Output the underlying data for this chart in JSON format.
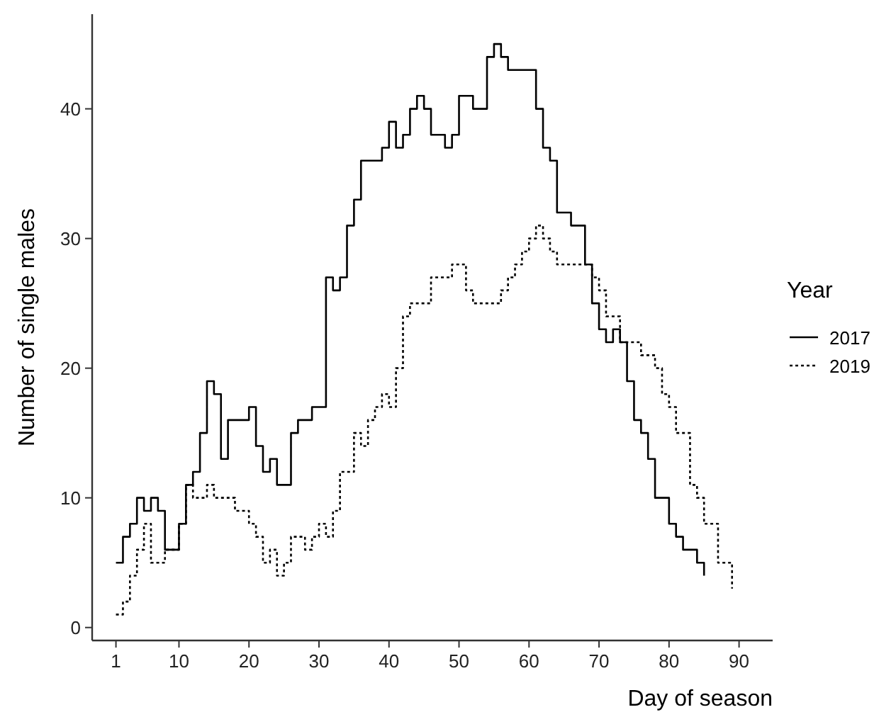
{
  "chart_data": {
    "type": "step",
    "xlabel": "Day of season",
    "ylabel": "Number of single males",
    "legend_title": "Year",
    "legend": "right",
    "grid": false,
    "xlim": [
      -2.4,
      94.8
    ],
    "xticks": [
      1,
      10,
      20,
      30,
      40,
      50,
      60,
      70,
      80,
      90
    ],
    "ylim": [
      -1,
      47.3
    ],
    "yticks": [
      0,
      10,
      20,
      30,
      40
    ],
    "series": [
      {
        "name": "2017",
        "color": "#000000",
        "line_style": "solid",
        "x": [
          1,
          2,
          3,
          4,
          5,
          6,
          7,
          8,
          10,
          11,
          12,
          13,
          14,
          15,
          16,
          17,
          20,
          21,
          22,
          23,
          24,
          26,
          27,
          29,
          31,
          32,
          33,
          34,
          35,
          36,
          39,
          40,
          41,
          42,
          43,
          44,
          45,
          46,
          48,
          49,
          50,
          52,
          54,
          55,
          56,
          57,
          61,
          62,
          63,
          64,
          66,
          68,
          69,
          70,
          71,
          72,
          73,
          74,
          75,
          76,
          77,
          78,
          80,
          81,
          82,
          84,
          85
        ],
        "values": [
          5,
          7,
          8,
          10,
          9,
          10,
          9,
          6,
          8,
          11,
          12,
          15,
          19,
          18,
          13,
          16,
          17,
          14,
          12,
          13,
          11,
          15,
          16,
          17,
          27,
          26,
          27,
          31,
          33,
          36,
          37,
          39,
          37,
          38,
          40,
          41,
          40,
          38,
          37,
          38,
          41,
          40,
          44,
          45,
          44,
          43,
          40,
          37,
          36,
          32,
          31,
          28,
          25,
          23,
          22,
          23,
          22,
          19,
          16,
          15,
          13,
          10,
          8,
          7,
          6,
          5,
          4
        ]
      },
      {
        "name": "2019",
        "color": "#000000",
        "line_style": "dotted",
        "x": [
          1,
          2,
          3,
          4,
          5,
          6,
          8,
          10,
          11,
          12,
          14,
          15,
          18,
          20,
          21,
          22,
          23,
          24,
          25,
          26,
          28,
          29,
          30,
          31,
          32,
          33,
          35,
          36,
          37,
          38,
          39,
          40,
          41,
          42,
          43,
          46,
          49,
          51,
          52,
          56,
          57,
          58,
          59,
          60,
          61,
          62,
          63,
          64,
          69,
          70,
          71,
          73,
          76,
          78,
          79,
          80,
          81,
          83,
          84,
          85,
          87,
          89
        ],
        "values": [
          1,
          2,
          4,
          6,
          8,
          5,
          6,
          8,
          11,
          10,
          11,
          10,
          9,
          8,
          7,
          5,
          6,
          4,
          5,
          7,
          6,
          7,
          8,
          7,
          9,
          12,
          15,
          14,
          16,
          17,
          18,
          17,
          20,
          24,
          25,
          27,
          28,
          26,
          25,
          26,
          27,
          28,
          29,
          30,
          31,
          30,
          29,
          28,
          27,
          26,
          24,
          22,
          21,
          20,
          18,
          17,
          15,
          11,
          10,
          8,
          5,
          3
        ]
      }
    ]
  }
}
